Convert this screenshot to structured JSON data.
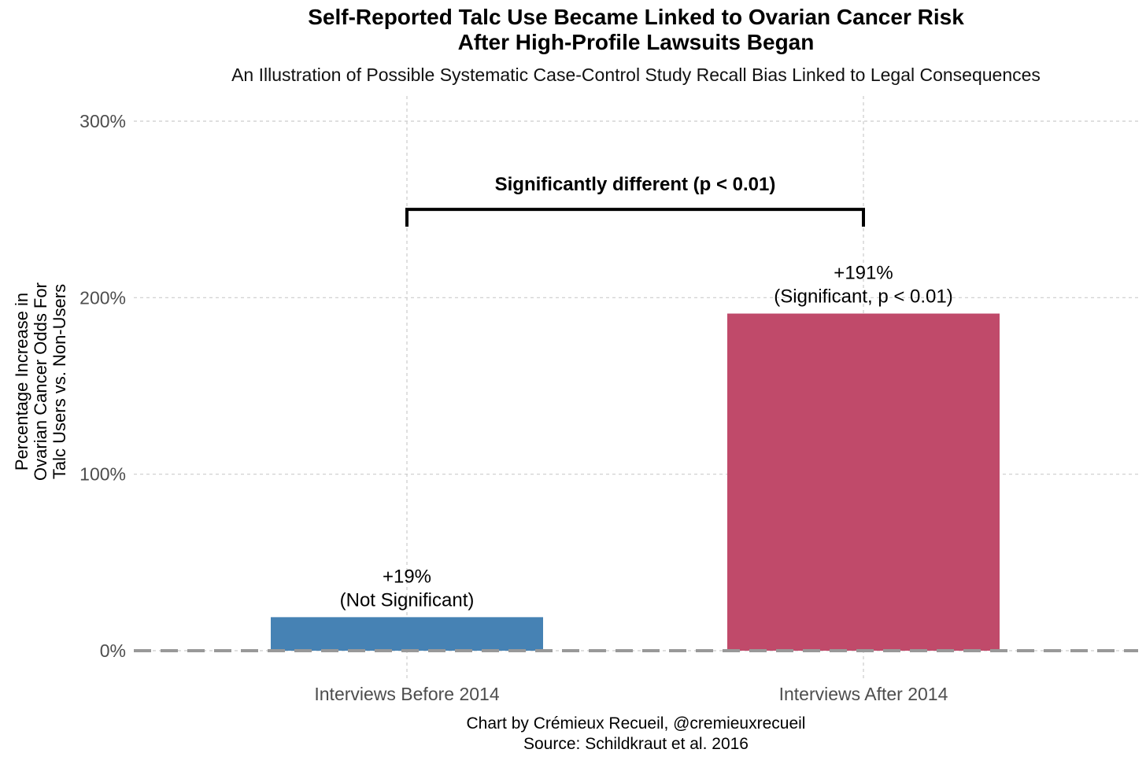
{
  "chart_data": {
    "type": "bar",
    "title_line1": "Self-Reported Talc Use Became Linked to Ovarian Cancer Risk",
    "title_line2": "After High-Profile Lawsuits Began",
    "subtitle": "An Illustration of Possible Systematic Case-Control Study Recall Bias Linked to Legal Consequences",
    "categories": [
      "Interviews Before 2014",
      "Interviews After 2014"
    ],
    "values": [
      19,
      191
    ],
    "data_labels": [
      [
        "+19%",
        "(Not Significant)"
      ],
      [
        "+191%",
        "(Significant, p < 0.01)"
      ]
    ],
    "bar_colors": [
      "#4682B4",
      "#C04A6A"
    ],
    "ylabel_lines": [
      "Percentage Increase in",
      "Ovarian Cancer Odds For",
      "Talc Users vs. Non-Users"
    ],
    "yticks": [
      0,
      100,
      200,
      300
    ],
    "ytick_labels": [
      "0%",
      "100%",
      "200%",
      "300%"
    ],
    "ylim": [
      0,
      300
    ],
    "grid": true,
    "reference_line_value": 0,
    "bracket": {
      "label": "Significantly different (p < 0.01)",
      "value": 250,
      "from": "Interviews Before 2014",
      "to": "Interviews After 2014"
    },
    "caption_line1": "Chart by Crémieux Recueil, @cremieuxrecueil",
    "caption_line2": "Source: Schildkraut et al. 2016"
  }
}
